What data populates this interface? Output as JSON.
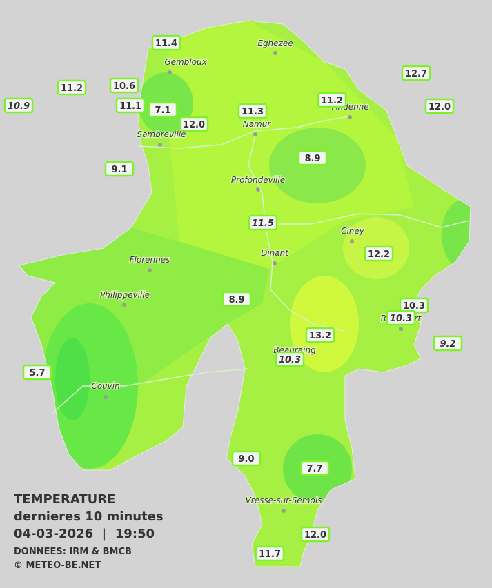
{
  "title": "TEMPERATURE",
  "subtitle": "dernieres 10 minutes",
  "datetime": "04-03-2026  |  19:50",
  "source": "DONNEES: IRM & BMCB",
  "copyright": "© METEO-BE.NET",
  "cities": [
    "Eghezee",
    "Gembloux",
    "Andenne",
    "Namur",
    "Sambreville",
    "Profondeville",
    "Ciney",
    "Dinant",
    "Florennes",
    "Philippeville",
    "Rochefort",
    "Beauraing",
    "Couvin",
    "Vresse-sur-Semois"
  ],
  "stations": [
    {
      "value": "11.4"
    },
    {
      "value": "11.2"
    },
    {
      "value": "10.9",
      "italic": true
    },
    {
      "value": "10.6"
    },
    {
      "value": "11.1"
    },
    {
      "value": "7.1"
    },
    {
      "value": "12.0"
    },
    {
      "value": "11.3"
    },
    {
      "value": "11.2"
    },
    {
      "value": "12.7"
    },
    {
      "value": "12.0"
    },
    {
      "value": "9.1"
    },
    {
      "value": "8.9"
    },
    {
      "value": "11.5",
      "italic": true
    },
    {
      "value": "12.2"
    },
    {
      "value": "8.9"
    },
    {
      "value": "10.3"
    },
    {
      "value": "10.3",
      "italic": true
    },
    {
      "value": "9.2",
      "italic": true
    },
    {
      "value": "13.2"
    },
    {
      "value": "10.3",
      "italic": true
    },
    {
      "value": "5.7"
    },
    {
      "value": "9.0"
    },
    {
      "value": "7.7"
    },
    {
      "value": "12.0"
    },
    {
      "value": "11.7"
    }
  ]
}
